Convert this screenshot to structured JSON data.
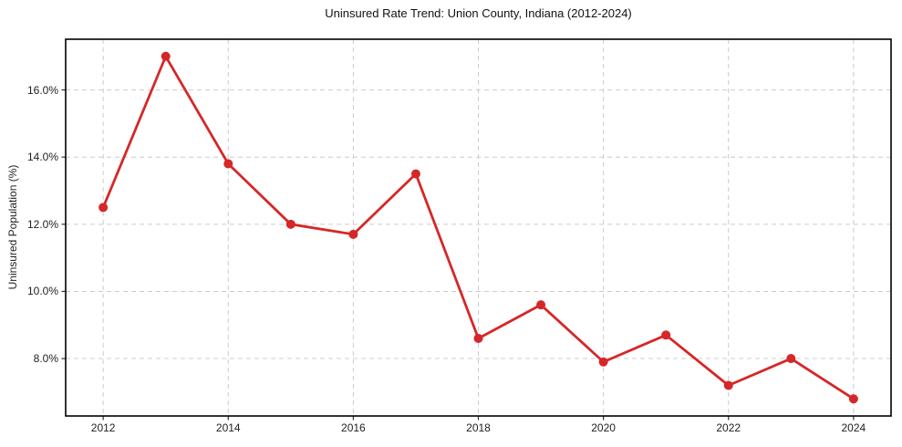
{
  "chart_data": {
    "type": "line",
    "title": "Uninsured Rate Trend: Union County, Indiana (2012-2024)",
    "xlabel": "",
    "ylabel": "Uninsured Population (%)",
    "x": [
      2012,
      2013,
      2014,
      2015,
      2016,
      2017,
      2018,
      2019,
      2020,
      2021,
      2022,
      2023,
      2024
    ],
    "values": [
      12.5,
      17.0,
      13.8,
      12.0,
      11.7,
      13.5,
      8.6,
      9.6,
      7.9,
      8.7,
      7.2,
      8.0,
      6.8
    ],
    "x_ticks": [
      {
        "value": 2012,
        "label": "2012"
      },
      {
        "value": 2014,
        "label": "2014"
      },
      {
        "value": 2016,
        "label": "2016"
      },
      {
        "value": 2018,
        "label": "2018"
      },
      {
        "value": 2020,
        "label": "2020"
      },
      {
        "value": 2022,
        "label": "2022"
      },
      {
        "value": 2024,
        "label": "2024"
      }
    ],
    "y_ticks": [
      {
        "value": 8.0,
        "label": "8.0%"
      },
      {
        "value": 10.0,
        "label": "10.0%"
      },
      {
        "value": 12.0,
        "label": "12.0%"
      },
      {
        "value": 14.0,
        "label": "14.0%"
      },
      {
        "value": 16.0,
        "label": "16.0%"
      }
    ],
    "xlim": [
      2011.4,
      2024.6
    ],
    "ylim": [
      6.29,
      17.51
    ],
    "grid": true,
    "legend": "none",
    "line_color": "#d62728",
    "marker": "circle",
    "grid_color": "#cccccc",
    "spine_color": "#000000",
    "background_color": "#ffffff"
  }
}
